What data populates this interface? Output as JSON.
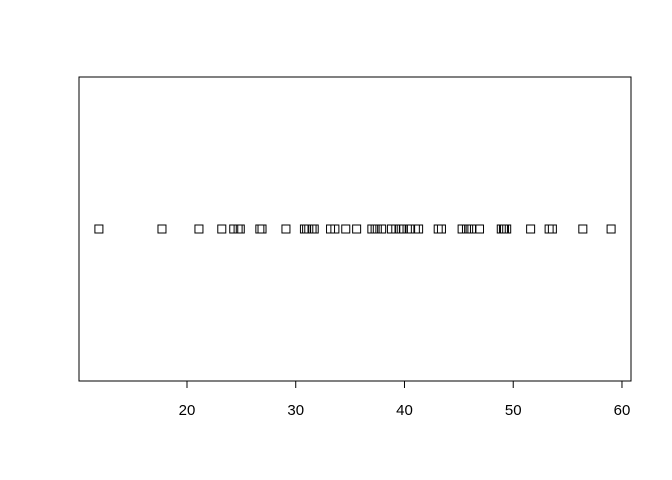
{
  "chart_data": {
    "type": "stripchart",
    "values": [
      11.9,
      17.7,
      21.1,
      23.2,
      24.3,
      24.7,
      24.9,
      26.7,
      26.9,
      29.1,
      30.8,
      31.0,
      31.2,
      31.5,
      31.7,
      33.2,
      33.6,
      34.6,
      35.6,
      37.0,
      37.3,
      37.5,
      37.9,
      38.8,
      39.2,
      39.5,
      39.7,
      39.9,
      40.5,
      41.0,
      41.3,
      43.1,
      43.4,
      45.3,
      45.7,
      45.9,
      46.2,
      46.9,
      48.9,
      49.1,
      49.2,
      49.4,
      51.6,
      53.3,
      53.6,
      56.4,
      59.0
    ],
    "color": "#000000",
    "xlim": [
      10.07,
      60.83
    ],
    "xticks": [
      20,
      30,
      40,
      50,
      60
    ]
  }
}
